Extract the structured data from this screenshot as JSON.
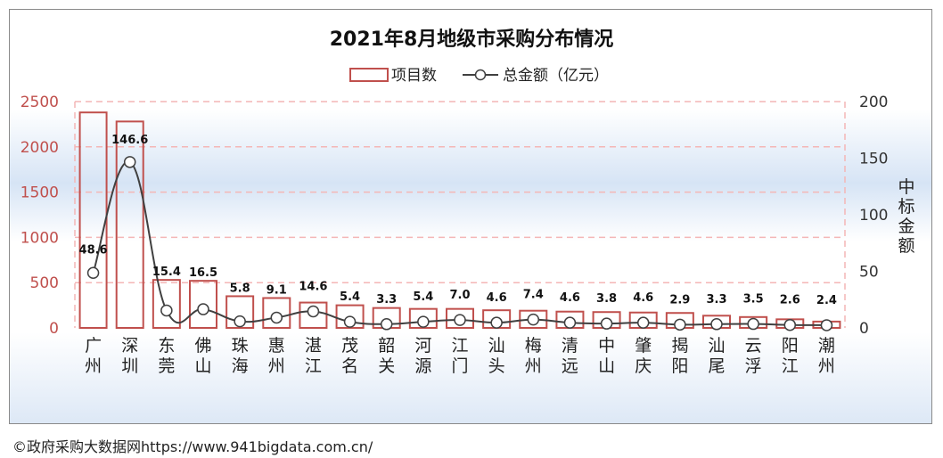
{
  "chart_data": {
    "type": "bar+line",
    "title": "2021年8月地级市采购分布情况",
    "legend": {
      "placement": "top-center",
      "bar_label": "项目数",
      "line_label": "总金额（亿元）"
    },
    "categories": [
      "广州",
      "深圳",
      "东莞",
      "佛山",
      "珠海",
      "惠州",
      "湛江",
      "茂名",
      "韶关",
      "河源",
      "江门",
      "汕头",
      "梅州",
      "清远",
      "中山",
      "肇庆",
      "揭阳",
      "汕尾",
      "云浮",
      "阳江",
      "潮州"
    ],
    "category_chars": [
      [
        "广",
        "州"
      ],
      [
        "深",
        "圳"
      ],
      [
        "东",
        "莞"
      ],
      [
        "佛",
        "山"
      ],
      [
        "珠",
        "海"
      ],
      [
        "惠",
        "州"
      ],
      [
        "湛",
        "江"
      ],
      [
        "茂",
        "名"
      ],
      [
        "韶",
        "关"
      ],
      [
        "河",
        "源"
      ],
      [
        "江",
        "门"
      ],
      [
        "汕",
        "头"
      ],
      [
        "梅",
        "州"
      ],
      [
        "清",
        "远"
      ],
      [
        "中",
        "山"
      ],
      [
        "肇",
        "庆"
      ],
      [
        "揭",
        "阳"
      ],
      [
        "汕",
        "尾"
      ],
      [
        "云",
        "浮"
      ],
      [
        "阳",
        "江"
      ],
      [
        "潮",
        "州"
      ]
    ],
    "series": [
      {
        "name": "项目数",
        "type": "bar",
        "axis": "left",
        "values": [
          2380,
          2280,
          530,
          520,
          350,
          330,
          280,
          250,
          220,
          210,
          210,
          195,
          190,
          180,
          175,
          170,
          165,
          135,
          120,
          95,
          70
        ]
      },
      {
        "name": "总金额（亿元）",
        "type": "line",
        "axis": "right",
        "values": [
          48.6,
          146.6,
          15.4,
          16.5,
          5.8,
          9.1,
          14.6,
          5.4,
          3.3,
          5.4,
          7.0,
          4.6,
          7.4,
          4.6,
          3.8,
          4.6,
          2.9,
          3.3,
          3.5,
          2.6,
          2.4
        ],
        "labels": [
          "48.6",
          "146.6",
          "15.4",
          "16.5",
          "5.8",
          "9.1",
          "14.6",
          "5.4",
          "3.3",
          "5.4",
          "7.0",
          "4.6",
          "7.4",
          "4.6",
          "3.8",
          "4.6",
          "2.9",
          "3.3",
          "3.5",
          "2.6",
          "2.4"
        ]
      }
    ],
    "y_left": {
      "min": 0,
      "max": 2500,
      "ticks": [
        "0",
        "500",
        "1000",
        "1500",
        "2000",
        "2500"
      ],
      "tick_values": [
        0,
        500,
        1000,
        1500,
        2000,
        2500
      ]
    },
    "y_right": {
      "min": 0,
      "max": 200,
      "label": "中标金额",
      "label_chars": [
        "中",
        "标",
        "金",
        "额"
      ],
      "ticks": [
        "0",
        "50",
        "100",
        "150",
        "200"
      ],
      "tick_values": [
        0,
        50,
        100,
        150,
        200
      ]
    },
    "grid": true
  },
  "footer": "©政府采购大数据网https://www.941bigdata.com.cn/",
  "colors": {
    "bar_stroke": "#c0504d",
    "line": "#404040",
    "left_axis_text": "#c0504d",
    "grid": "#f4b6b6"
  }
}
